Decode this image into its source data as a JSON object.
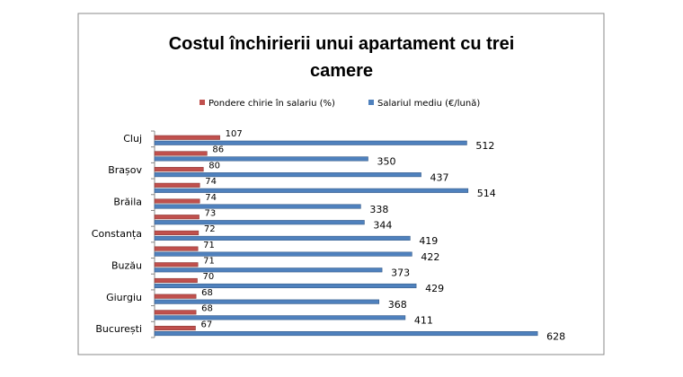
{
  "chart_data": {
    "type": "bar",
    "orientation": "horizontal",
    "title": "Costul închirierii unui apartament cu trei camere",
    "categories": [
      "Cluj",
      null,
      "Brașov",
      null,
      "Brăila",
      null,
      "Constanța",
      null,
      "Buzău",
      null,
      "Giurgiu",
      null,
      "București"
    ],
    "series": [
      {
        "name": "Pondere chirie în salariu (%)",
        "color": "#c0504d",
        "values": [
          107,
          86,
          80,
          74,
          74,
          73,
          72,
          71,
          71,
          70,
          68,
          68,
          67
        ]
      },
      {
        "name": "Salariul mediu (€/lună)",
        "color": "#4f81bd",
        "values": [
          512,
          350,
          437,
          514,
          338,
          344,
          419,
          422,
          373,
          429,
          368,
          411,
          628
        ]
      }
    ],
    "xlim": [
      0,
      700
    ],
    "legend": "top"
  }
}
